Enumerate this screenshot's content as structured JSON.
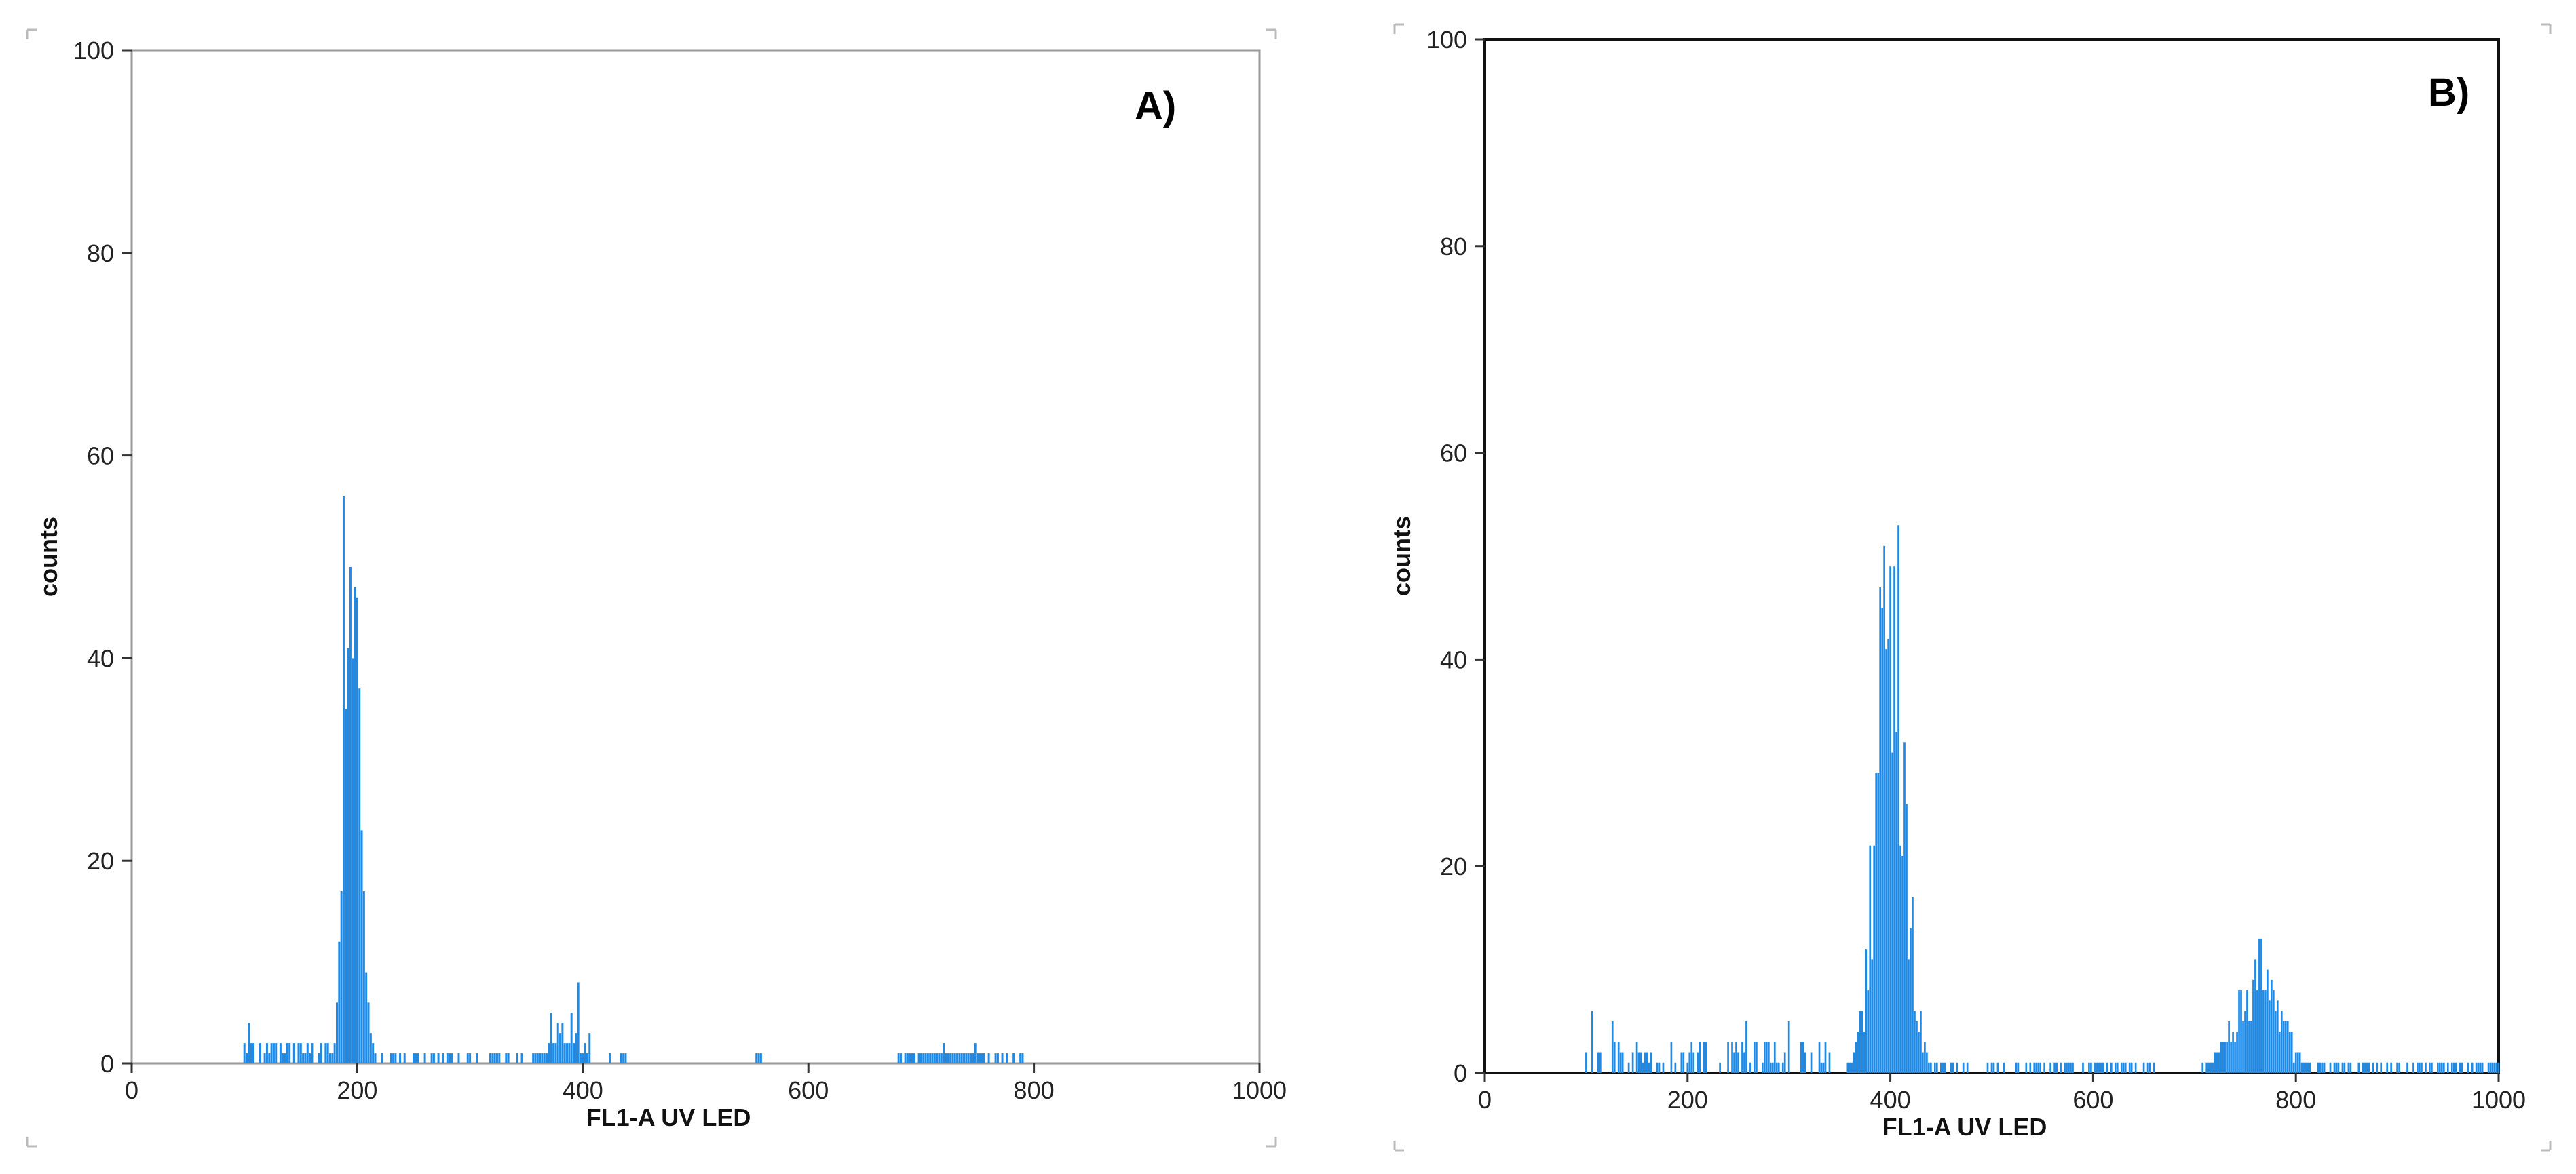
{
  "chart_data": [
    {
      "type": "bar",
      "panel_label": "A)",
      "xlabel": "FL1-A  UV LED",
      "ylabel": "counts",
      "xlim": [
        0,
        1000
      ],
      "ylim": [
        0,
        100
      ],
      "x_ticks": [
        "0",
        "200",
        "400",
        "600",
        "800",
        "1000"
      ],
      "y_ticks": [
        "0",
        "20",
        "40",
        "60",
        "80",
        "100"
      ],
      "grid": false,
      "color": "#1e8ae6",
      "histogram": {
        "bin_width": 2,
        "peaks": [
          {
            "center": 196,
            "sigma": 7,
            "height": 36
          },
          {
            "center": 382,
            "sigma": 14,
            "height": 3
          },
          {
            "center": 725,
            "sigma": 22,
            "height": 1
          }
        ],
        "spikes": [
          {
            "x": 188,
            "count": 56
          },
          {
            "x": 194,
            "count": 36
          },
          {
            "x": 198,
            "count": 47
          },
          {
            "x": 200,
            "count": 46
          },
          {
            "x": 202,
            "count": 37
          },
          {
            "x": 396,
            "count": 8
          },
          {
            "x": 390,
            "count": 5
          },
          {
            "x": 372,
            "count": 5
          },
          {
            "x": 406,
            "count": 3
          },
          {
            "x": 104,
            "count": 4
          },
          {
            "x": 720,
            "count": 2
          },
          {
            "x": 748,
            "count": 2
          }
        ],
        "sparse": [
          {
            "range": [
              96,
              180
            ],
            "max": 2
          },
          {
            "range": [
              210,
              350
            ],
            "max": 1
          },
          {
            "range": [
              420,
              440
            ],
            "max": 1
          },
          {
            "range": [
              550,
              560
            ],
            "max": 1
          },
          {
            "range": [
              680,
              790
            ],
            "max": 1
          }
        ]
      }
    },
    {
      "type": "bar",
      "panel_label": "B)",
      "xlabel": "FL1-A  UV LED",
      "ylabel": "counts",
      "xlim": [
        0,
        1000
      ],
      "ylim": [
        0,
        100
      ],
      "x_ticks": [
        "0",
        "200",
        "400",
        "600",
        "800",
        "1000"
      ],
      "y_ticks": [
        "0",
        "20",
        "40",
        "60",
        "80",
        "100"
      ],
      "grid": false,
      "color": "#1e8ae6",
      "histogram": {
        "bin_width": 2,
        "peaks": [
          {
            "center": 400,
            "sigma": 14,
            "height": 42
          },
          {
            "center": 763,
            "sigma": 22,
            "height": 9
          }
        ],
        "spikes": [
          {
            "x": 408,
            "count": 53
          },
          {
            "x": 404,
            "count": 49
          },
          {
            "x": 400,
            "count": 47
          },
          {
            "x": 396,
            "count": 41
          },
          {
            "x": 766,
            "count": 13
          },
          {
            "x": 760,
            "count": 11
          },
          {
            "x": 106,
            "count": 6
          },
          {
            "x": 126,
            "count": 5
          },
          {
            "x": 258,
            "count": 5
          },
          {
            "x": 300,
            "count": 5
          }
        ],
        "sparse": [
          {
            "range": [
              98,
              340
            ],
            "max": 3
          },
          {
            "range": [
              440,
              660
            ],
            "max": 1
          },
          {
            "range": [
              800,
              1000
            ],
            "max": 1
          }
        ]
      }
    }
  ]
}
